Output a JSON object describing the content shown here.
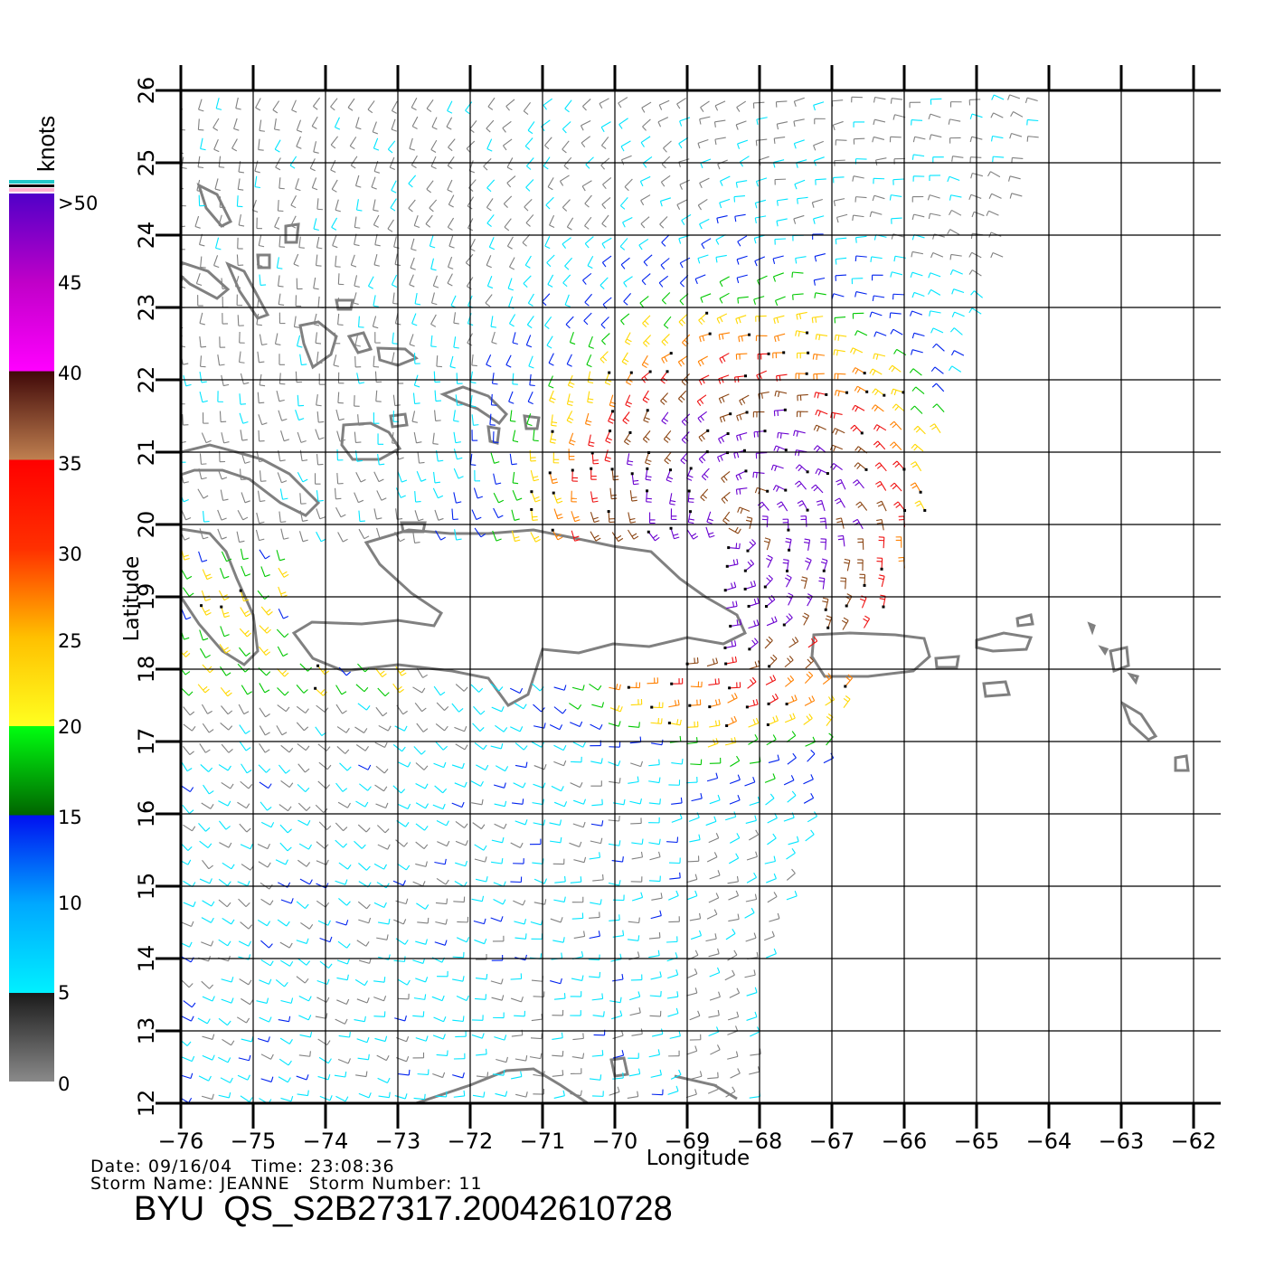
{
  "map": {
    "lon_min": -76,
    "lon_max": -62,
    "lat_min": 12,
    "lat_max": 26,
    "lon_ticks": [
      "-76",
      "-75",
      "-74",
      "-73",
      "-72",
      "-71",
      "-70",
      "-69",
      "-68",
      "-67",
      "-66",
      "-65",
      "-64",
      "-63",
      "-62"
    ],
    "lat_ticks": [
      "12",
      "13",
      "14",
      "15",
      "16",
      "17",
      "18",
      "19",
      "20",
      "21",
      "22",
      "23",
      "24",
      "25",
      "26"
    ],
    "xlabel": "Longitude",
    "ylabel": "Latitude",
    "grid": true,
    "swath_edge": [
      [
        -64.0,
        25.8
      ],
      [
        -64.3,
        24.6
      ],
      [
        -64.7,
        23.4
      ],
      [
        -65.1,
        22.2
      ],
      [
        -65.5,
        21.0
      ],
      [
        -65.8,
        19.9
      ],
      [
        -66.2,
        18.8
      ],
      [
        -66.6,
        17.8
      ],
      [
        -67.0,
        16.8
      ],
      [
        -67.3,
        15.8
      ],
      [
        -67.6,
        14.8
      ],
      [
        -67.9,
        13.8
      ],
      [
        -68.0,
        12.6
      ]
    ]
  },
  "legend": {
    "title": "knots",
    "labels": [
      ">50",
      "45",
      "40",
      "35",
      "30",
      "25",
      "20",
      "15",
      "10",
      "5",
      "0"
    ],
    "colors": {
      "calm": "#808080",
      "weak": "#00e5ff",
      "blue": "#0022ee",
      "green": "#00c800",
      "yellow": "#ffd700",
      "orange": "#ff8000",
      "red": "#ee1010",
      "brown": "#8b4513",
      "magenta": "#e600e6",
      "purple": "#6a00d0",
      "land": "#808080"
    }
  },
  "footer": {
    "date_line": "Date: 09/16/04   Time: 23:08:36",
    "storm_line": "Storm Name: JEANNE   Storm Number: 11",
    "id": "BYU  QS_S2B27317.20042610728"
  }
}
